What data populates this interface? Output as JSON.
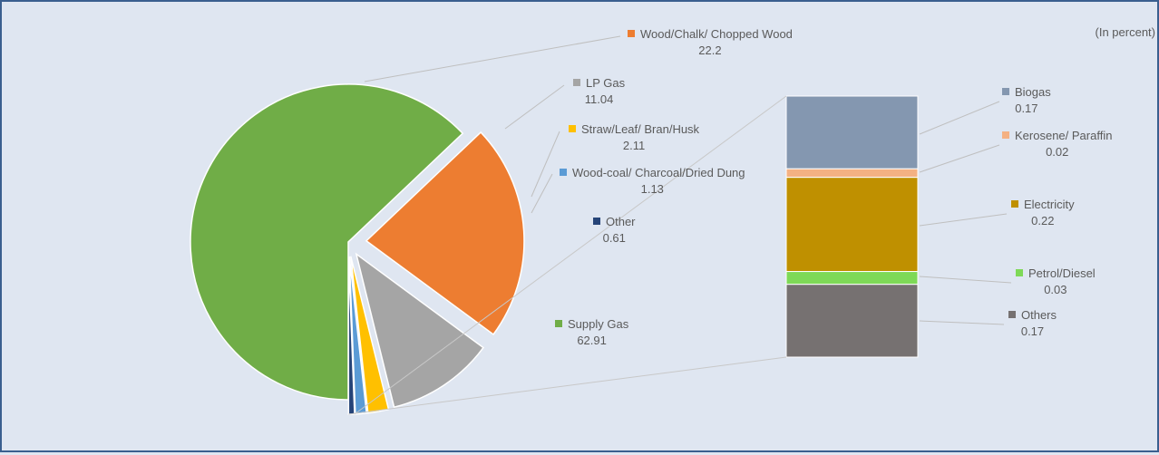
{
  "chart_data": {
    "type": "bar-of-pie",
    "unit_note": "(In percent)",
    "pie": {
      "slices": [
        {
          "name": "Supply Gas",
          "value": 62.91,
          "label_value": "62.91",
          "color": "#70ad47"
        },
        {
          "name": "Wood/Chalk/ Chopped Wood",
          "value": 22.2,
          "label_value": "22.2",
          "color": "#ed7d31"
        },
        {
          "name": "LP Gas",
          "value": 11.04,
          "label_value": "11.04",
          "color": "#a5a5a5"
        },
        {
          "name": "Straw/Leaf/ Bran/Husk",
          "value": 2.11,
          "label_value": "2.11",
          "color": "#ffc000"
        },
        {
          "name": "Wood-coal/ Charcoal/Dried Dung",
          "value": 1.13,
          "label_value": "1.13",
          "color": "#5b9bd5"
        },
        {
          "name": "Other",
          "value": 0.61,
          "label_value": "0.61",
          "color": "#264478"
        }
      ]
    },
    "bar": {
      "segments": [
        {
          "name": "Biogas",
          "value": 0.17,
          "label_value": "0.17",
          "color": "#8497b0"
        },
        {
          "name": "Kerosene/ Paraffin",
          "value": 0.02,
          "label_value": "0.02",
          "color": "#f4b183"
        },
        {
          "name": "Electricity",
          "value": 0.22,
          "label_value": "0.22",
          "color": "#bf9000"
        },
        {
          "name": "Petrol/Diesel",
          "value": 0.03,
          "label_value": "0.03",
          "color": "#7ed957"
        },
        {
          "name": "Others",
          "value": 0.17,
          "label_value": "0.17",
          "color": "#767171"
        }
      ]
    }
  }
}
